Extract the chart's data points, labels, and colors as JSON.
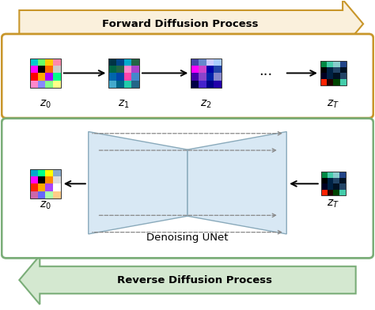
{
  "fig_width": 4.74,
  "fig_height": 3.92,
  "dpi": 100,
  "bg_color": "#ffffff",
  "forward_arrow_face": "#FAF0DC",
  "forward_arrow_edge": "#C8962A",
  "reverse_arrow_face": "#D4E8D0",
  "reverse_arrow_edge": "#7AAD78",
  "forward_box_color": "#C8962A",
  "reverse_box_color": "#7AAD78",
  "forward_label": "Forward Diffusion Process",
  "reverse_label": "Reverse Diffusion Process",
  "unet_label": "Denoising UNet",
  "unet_fill": "#D8E8F4",
  "unet_edge": "#8AAABB",
  "pixel_z0_fwd": [
    [
      "#00CCCC",
      "#66FF66",
      "#FFCC00",
      "#FF88AA"
    ],
    [
      "#FF00FF",
      "#000000",
      "#FF6600",
      "#CCCCCC"
    ],
    [
      "#FF0000",
      "#FFAA00",
      "#AA00FF",
      "#00FF88"
    ],
    [
      "#FF88CC",
      "#8888FF",
      "#88FF88",
      "#FFFF88"
    ]
  ],
  "pixel_z1_fwd": [
    [
      "#003344",
      "#004488",
      "#00AACC",
      "#226644"
    ],
    [
      "#006644",
      "#226644",
      "#FF88CC",
      "#AA44CC"
    ],
    [
      "#0066AA",
      "#0044AA",
      "#FF44AA",
      "#4488CC"
    ],
    [
      "#44AACC",
      "#006688",
      "#22CCAA",
      "#226688"
    ]
  ],
  "pixel_z2_fwd": [
    [
      "#4444AA",
      "#6688CC",
      "#CCCCFF",
      "#AACCFF"
    ],
    [
      "#FF00FF",
      "#CC44CC",
      "#0000AA",
      "#2244AA"
    ],
    [
      "#4400AA",
      "#8844CC",
      "#0022AA",
      "#8888CC"
    ],
    [
      "#000044",
      "#4422CC",
      "#000088",
      "#2200AA"
    ]
  ],
  "pixel_zT_fwd": [
    [
      "#008844",
      "#44CCAA",
      "#88CCCC",
      "#224488"
    ],
    [
      "#000000",
      "#002244",
      "#224466",
      "#001122"
    ],
    [
      "#000022",
      "#002244",
      "#001122",
      "#224466"
    ],
    [
      "#FF2200",
      "#220000",
      "#004400",
      "#44CCAA"
    ]
  ],
  "pixel_z0_rev": [
    [
      "#00AACC",
      "#00FF88",
      "#FFFF00",
      "#88AACC"
    ],
    [
      "#FF00FF",
      "#000000",
      "#FF8800",
      "#DDDDDD"
    ],
    [
      "#FF2200",
      "#FFAA00",
      "#AA44FF",
      "#FFFFFF"
    ],
    [
      "#CC66AA",
      "#6666FF",
      "#AAFFAA",
      "#FFCC88"
    ]
  ],
  "pixel_zT_rev": [
    [
      "#008844",
      "#44CCAA",
      "#88CCCC",
      "#224488"
    ],
    [
      "#000000",
      "#002244",
      "#224466",
      "#001122"
    ],
    [
      "#000022",
      "#002244",
      "#001122",
      "#224466"
    ],
    [
      "#FF2200",
      "#220000",
      "#004400",
      "#44CCAA"
    ]
  ]
}
